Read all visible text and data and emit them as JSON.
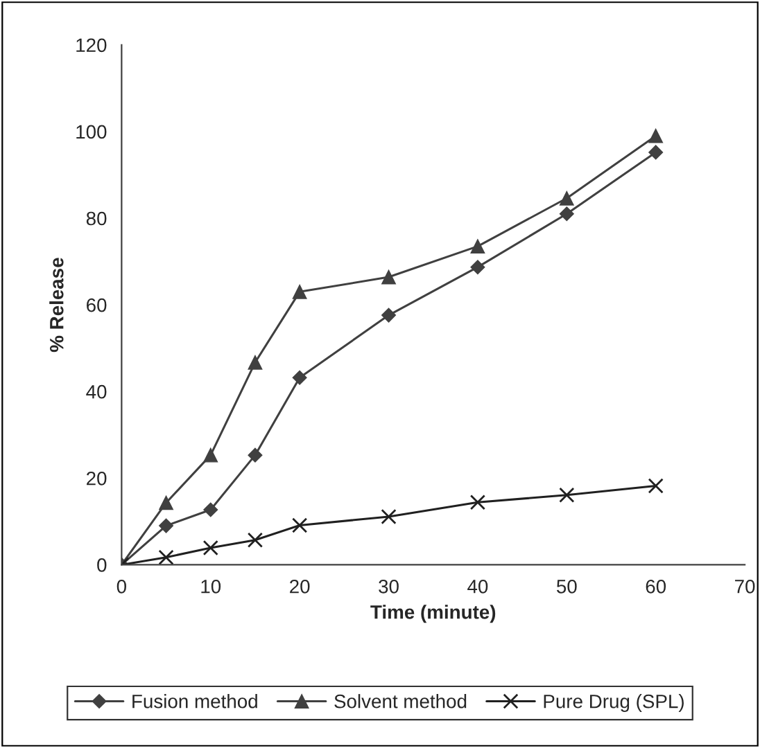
{
  "chart_data": {
    "type": "line",
    "xlabel": "Time (minute)",
    "ylabel": "% Release",
    "x": [
      0,
      5,
      10,
      15,
      20,
      30,
      40,
      50,
      60
    ],
    "series": [
      {
        "name": "Fusion method",
        "color": "#404040",
        "marker": "diamond",
        "values": [
          0,
          9,
          12.7,
          25.3,
          43.2,
          57.6,
          68.7,
          81,
          95.2
        ]
      },
      {
        "name": "Solvent method",
        "color": "#404040",
        "marker": "triangle",
        "values": [
          0,
          14.3,
          25.3,
          46.7,
          63,
          66.4,
          73.5,
          84.6,
          99
        ]
      },
      {
        "name": "Pure Drug (SPL)",
        "color": "#202020",
        "marker": "cross",
        "values": [
          0,
          1.7,
          3.9,
          5.7,
          9.1,
          11.1,
          14.4,
          16.1,
          18.2
        ]
      }
    ],
    "xlim": [
      0,
      70
    ],
    "xticks": [
      0,
      10,
      20,
      30,
      40,
      50,
      60,
      70
    ],
    "ylim": [
      0,
      120
    ],
    "yticks": [
      0,
      20,
      40,
      60,
      80,
      100,
      120
    ],
    "grid": false,
    "legend": "bottom",
    "line_style": "solid"
  }
}
